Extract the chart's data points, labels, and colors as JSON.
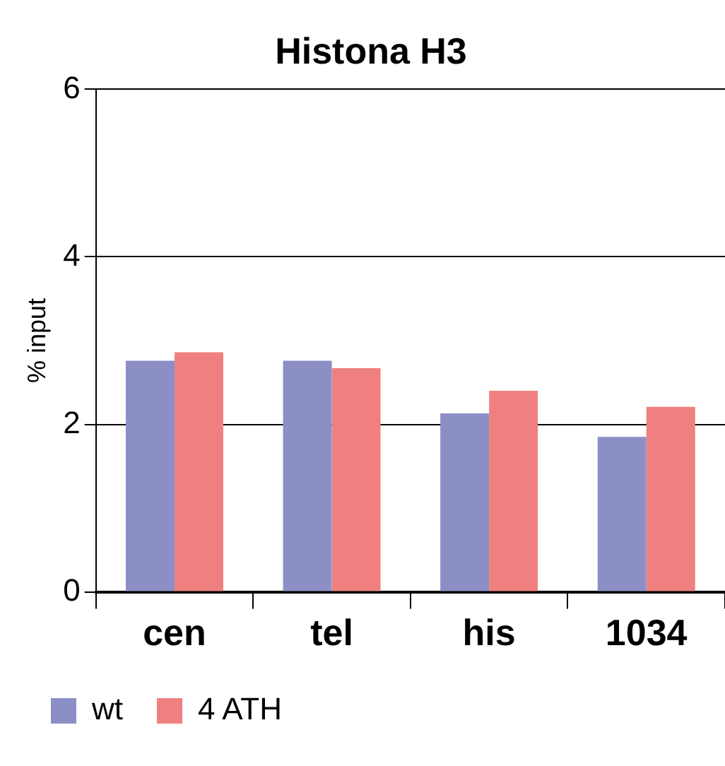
{
  "chart_data": {
    "type": "bar",
    "title": "Histona H3",
    "ylabel": "% input",
    "categories": [
      "cen",
      "tel",
      "his",
      "1034"
    ],
    "series": [
      {
        "name": "wt",
        "color": "#8c8fc6",
        "values": [
          2.76,
          2.76,
          2.13,
          1.85
        ]
      },
      {
        "name": "4 ATH",
        "color": "#f08080",
        "values": [
          2.86,
          2.67,
          2.4,
          2.21
        ]
      }
    ],
    "ylim": [
      0,
      6
    ],
    "yticks": [
      0,
      2,
      4,
      6
    ],
    "grid": "y",
    "legend": "bottom left"
  }
}
